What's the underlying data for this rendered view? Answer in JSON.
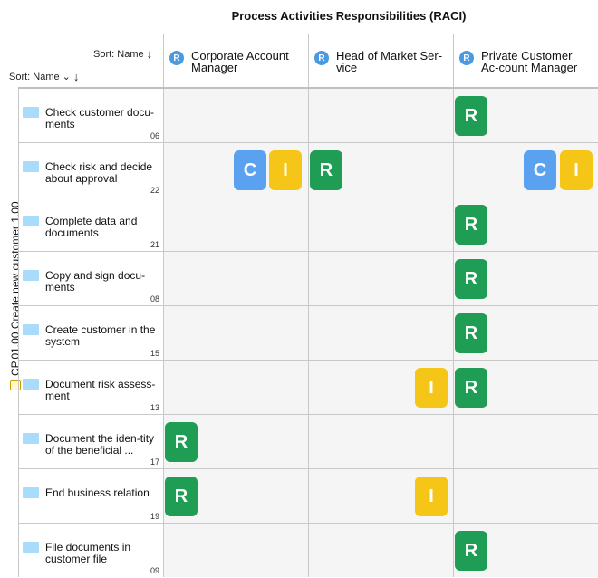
{
  "title": "Process Activities Responsibilities (RACI)",
  "sort_top": {
    "label": "Sort: Name",
    "arrow": "↓"
  },
  "sort_left": {
    "label": "Sort: Name",
    "chevron": "⌄",
    "arrow": "↓"
  },
  "process_label": "CP.01.00 Create new customer 1.00",
  "columns": [
    {
      "badge": "R",
      "label": "Corporate Account Manager"
    },
    {
      "badge": "R",
      "label": "Head of Market Ser-vice"
    },
    {
      "badge": "R",
      "label": "Private Customer Ac-count Manager"
    }
  ],
  "rows": [
    {
      "name": "Check customer docu-ments",
      "num": "06",
      "cells": [
        [],
        [],
        [
          "R"
        ]
      ]
    },
    {
      "name": "Check risk and decide about approval",
      "num": "22",
      "cells": [
        [
          "C",
          "I"
        ],
        [
          "R"
        ],
        [
          "C",
          "I"
        ]
      ]
    },
    {
      "name": "Complete data and documents",
      "num": "21",
      "cells": [
        [],
        [],
        [
          "R"
        ]
      ]
    },
    {
      "name": "Copy and sign docu-ments",
      "num": "08",
      "cells": [
        [],
        [],
        [
          "R"
        ]
      ]
    },
    {
      "name": "Create customer in the system",
      "num": "15",
      "cells": [
        [],
        [],
        [
          "R"
        ]
      ]
    },
    {
      "name": "Document risk assess-ment",
      "num": "13",
      "cells": [
        [],
        [
          "I"
        ],
        [
          "R"
        ]
      ]
    },
    {
      "name": "Document the iden-tity of the beneficial ...",
      "num": "17",
      "cells": [
        [
          "R"
        ],
        [],
        []
      ]
    },
    {
      "name": "End business relation",
      "num": "19",
      "cells": [
        [
          "R"
        ],
        [
          "I"
        ],
        []
      ]
    },
    {
      "name": "File documents in customer file",
      "num": "09",
      "cells": [
        [],
        [],
        [
          "R"
        ]
      ]
    }
  ],
  "colors": {
    "R": "#1f9d55",
    "C": "#5aa2f0",
    "I": "#f5c518",
    "row_icon": "#a9dcfb"
  }
}
